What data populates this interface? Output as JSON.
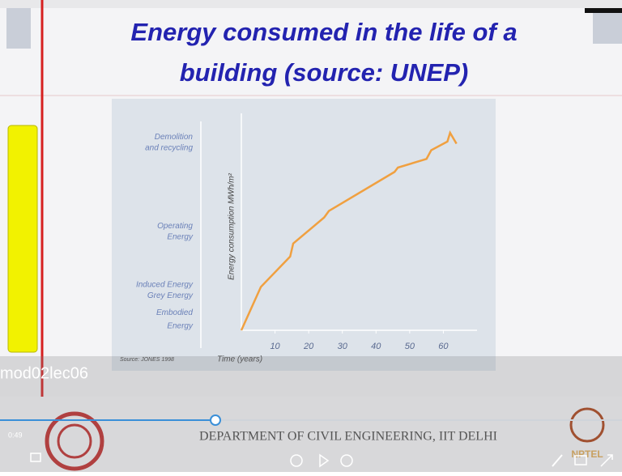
{
  "slide": {
    "title_lines": [
      "Energy consumed in the life of a",
      "building (source: UNEP)"
    ],
    "overlay_label": "mod02lec06",
    "footer": "DEPARTMENT OF CIVIL ENGINEERING, IIT DELHI"
  },
  "player": {
    "time": "0:49",
    "logo": "NPTEL"
  },
  "chart_data": {
    "type": "line",
    "x": [
      0,
      5.8,
      14.5,
      15.4,
      24.6,
      26,
      45.5,
      46.5,
      55,
      56.4,
      61.2,
      62,
      63.9
    ],
    "values": [
      0,
      20,
      34,
      40,
      52,
      55,
      73,
      75,
      79,
      83,
      87,
      91,
      86
    ],
    "color": "#f0a040",
    "xlim": [
      0,
      70
    ],
    "xticks": [
      10,
      20,
      30,
      40,
      50,
      60
    ],
    "ylim": [
      0,
      100
    ],
    "yticks": [
      {
        "value": 89,
        "label": "Demolition"
      },
      {
        "value": 84,
        "label": "and recycling"
      },
      {
        "value": 48,
        "label": "Operating"
      },
      {
        "value": 43,
        "label": "Energy"
      },
      {
        "value": 21,
        "label": "Induced Energy"
      },
      {
        "value": 16,
        "label": "Grey Energy"
      },
      {
        "value": 8,
        "label": "Embodied"
      },
      {
        "value": 2,
        "label": "Energy"
      }
    ],
    "xlabel": "Time (years)",
    "ylabel": "Energy consumption MWh/m²",
    "note": "Source: JONES 1998"
  }
}
